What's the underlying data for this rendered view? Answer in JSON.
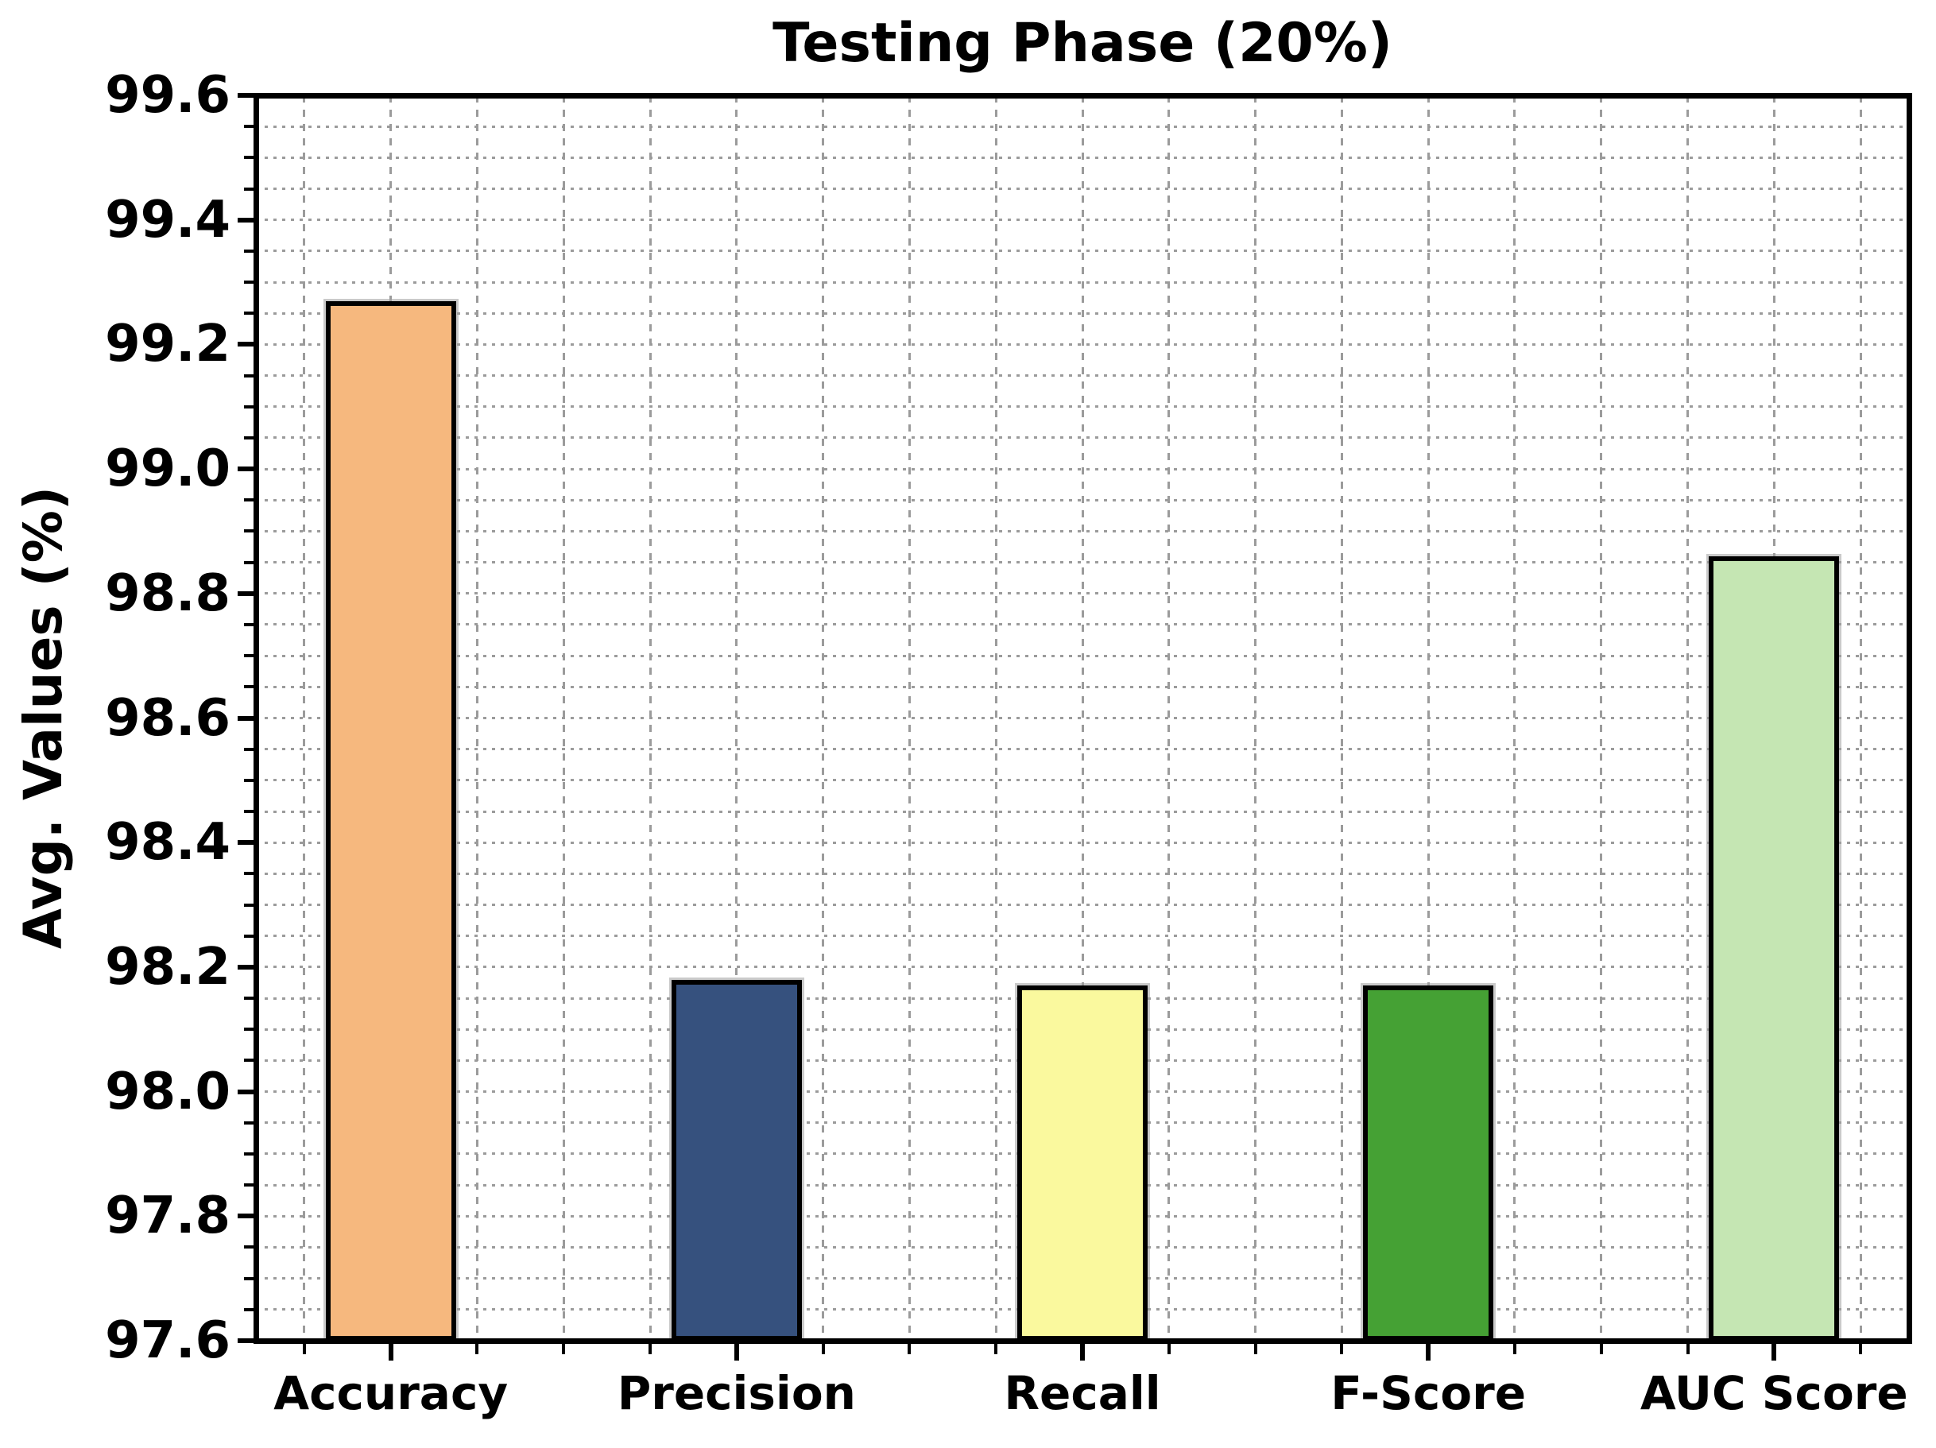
{
  "chart_data": {
    "type": "bar",
    "title": "Testing Phase (20%)",
    "ylabel": "Avg. Values (%)",
    "xlabel": "",
    "categories": [
      "Accuracy",
      "Precision",
      "Recall",
      "F-Score",
      "AUC Score"
    ],
    "values": [
      99.27,
      98.18,
      98.17,
      98.17,
      98.86
    ],
    "bar_colors": [
      "#F6B87E",
      "#36517E",
      "#FAF99E",
      "#45A134",
      "#C5E6B3"
    ],
    "bar_edge_color": "#000000",
    "ylim": [
      97.6,
      99.6
    ],
    "y_major_step": 0.2,
    "y_minor_step": 0.05,
    "y_tick_labels": [
      "97.6",
      "97.8",
      "98.0",
      "98.2",
      "98.4",
      "98.6",
      "98.8",
      "99.0",
      "99.2",
      "99.4",
      "99.6"
    ],
    "x_margin": 0.39,
    "x_minor_step": 0.25,
    "bar_width": 0.377,
    "grid": {
      "color": "#9b9b9b",
      "horizontal_style": "dotted",
      "vertical_style": "dashed"
    },
    "legend_position": "none"
  }
}
